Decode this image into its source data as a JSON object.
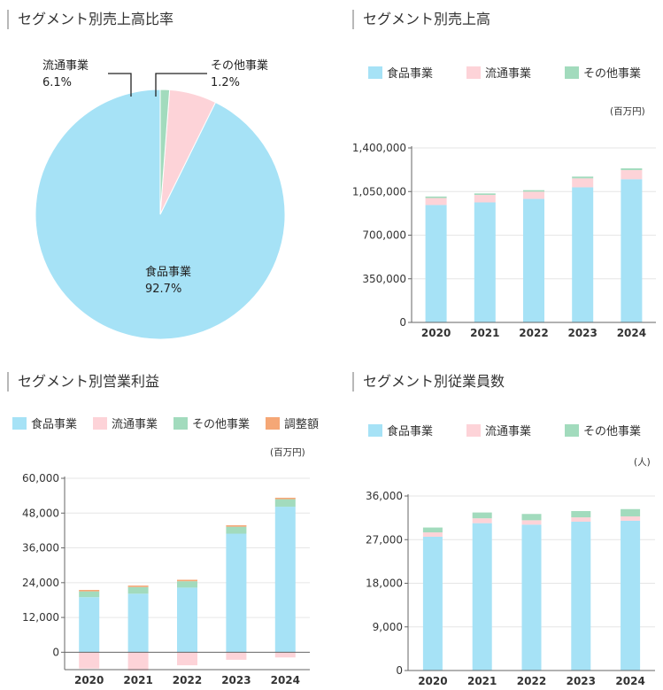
{
  "colors": {
    "food": "#a6e2f6",
    "distribution": "#fdd3d8",
    "other": "#a2dbbd",
    "adjustment": "#f5a776",
    "axis": "#666666",
    "grid": "#e6e6e6"
  },
  "panels": {
    "ratio": {
      "title": "セグメント別売上高比率"
    },
    "sales": {
      "title": "セグメント別売上高",
      "unit": "(百万円)"
    },
    "profit": {
      "title": "セグメント別営業利益",
      "unit": "(百万円)"
    },
    "employees": {
      "title": "セグメント別従業員数",
      "unit": "(人)"
    }
  },
  "legend": {
    "food": "食品事業",
    "distribution": "流通事業",
    "other": "その他事業",
    "adjustment": "調整額"
  },
  "pie_labels": {
    "food": {
      "name": "食品事業",
      "pct": "92.7%"
    },
    "distribution": {
      "name": "流通事業",
      "pct": "6.1%"
    },
    "other": {
      "name": "その他事業",
      "pct": "1.2%"
    }
  },
  "chart_data": [
    {
      "type": "pie",
      "title": "セグメント別売上高比率",
      "slices": [
        {
          "name": "食品事業",
          "value": 92.7,
          "color": "#a6e2f6"
        },
        {
          "name": "流通事業",
          "value": 6.1,
          "color": "#fdd3d8"
        },
        {
          "name": "その他事業",
          "value": 1.2,
          "color": "#a2dbbd"
        }
      ]
    },
    {
      "type": "bar",
      "stacked": true,
      "title": "セグメント別売上高",
      "unit": "(百万円)",
      "categories": [
        "2020",
        "2021",
        "2022",
        "2023",
        "2024"
      ],
      "ylim": [
        0,
        1400000
      ],
      "yticks": [
        0,
        350000,
        700000,
        1050000,
        1400000
      ],
      "ytick_labels": [
        "0",
        "350,000",
        "700,000",
        "1,050,000",
        "1,400,000"
      ],
      "series": [
        {
          "name": "食品事業",
          "values": [
            942000,
            963000,
            991000,
            1084000,
            1149000
          ]
        },
        {
          "name": "流通事業",
          "values": [
            56000,
            60000,
            58000,
            72000,
            73000
          ]
        },
        {
          "name": "その他事業",
          "values": [
            12000,
            12000,
            12000,
            14000,
            14000
          ]
        }
      ]
    },
    {
      "type": "bar",
      "stacked": true,
      "title": "セグメント別営業利益",
      "unit": "(百万円)",
      "categories": [
        "2020",
        "2021",
        "2022",
        "2023",
        "2024"
      ],
      "ylim": [
        -6000,
        60000
      ],
      "yticks": [
        0,
        12000,
        24000,
        36000,
        48000,
        60000
      ],
      "ytick_labels": [
        "0",
        "12,000",
        "24,000",
        "36,000",
        "48,000",
        "60,000"
      ],
      "series": [
        {
          "name": "食品事業",
          "values": [
            19000,
            20200,
            22300,
            40900,
            50200
          ]
        },
        {
          "name": "流通事業",
          "values": [
            -5600,
            -6300,
            -4500,
            -2600,
            -1800
          ]
        },
        {
          "name": "その他事業",
          "values": [
            2000,
            2300,
            2200,
            2400,
            2600
          ]
        },
        {
          "name": "調整額",
          "values": [
            500,
            500,
            500,
            500,
            500
          ]
        }
      ]
    },
    {
      "type": "bar",
      "stacked": true,
      "title": "セグメント別従業員数",
      "unit": "(人)",
      "categories": [
        "2020",
        "2021",
        "2022",
        "2023",
        "2024"
      ],
      "ylim": [
        0,
        36000
      ],
      "yticks": [
        0,
        9000,
        18000,
        27000,
        36000
      ],
      "ytick_labels": [
        "0",
        "9,000",
        "18,000",
        "27,000",
        "36,000"
      ],
      "series": [
        {
          "name": "食品事業",
          "values": [
            27600,
            30400,
            30100,
            30700,
            30900
          ]
        },
        {
          "name": "流通事業",
          "values": [
            900,
            1000,
            900,
            900,
            900
          ]
        },
        {
          "name": "その他事業",
          "values": [
            1000,
            1200,
            1300,
            1300,
            1500
          ]
        }
      ]
    }
  ]
}
